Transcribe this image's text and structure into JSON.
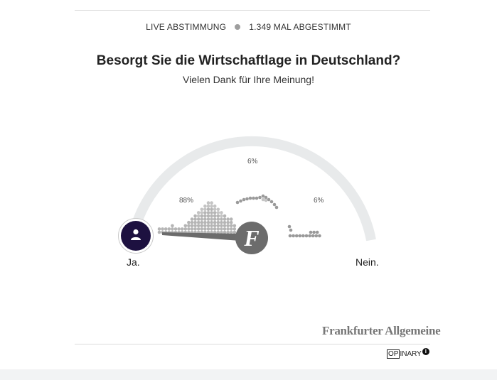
{
  "status": {
    "live_label": "LIVE ABSTIMMUNG",
    "votes_label": "1.349 MAL ABGESTIMMT"
  },
  "poll": {
    "question": "Besorgt Sie die Wirtschaftlage in Deutschland?",
    "thanks": "Vielen Dank für Ihre Meinung!",
    "left_label": "Ja.",
    "right_label": "Nein.",
    "result_left": "88%",
    "result_middle": "6%",
    "result_right": "6%"
  },
  "knob": {
    "glyph": "F",
    "icon": "faz-f-icon"
  },
  "user": {
    "icon": "user-icon"
  },
  "brand": {
    "publisher": "Frankfurter Allgemeine",
    "provider_prefix": "OP",
    "provider_suffix": "INARY",
    "info_glyph": "i"
  },
  "colors": {
    "avatar_bg": "#1d1140",
    "knob_bg": "#6c6c6c",
    "arc": "#e8eaeb",
    "dots": "#b5b5b5"
  }
}
